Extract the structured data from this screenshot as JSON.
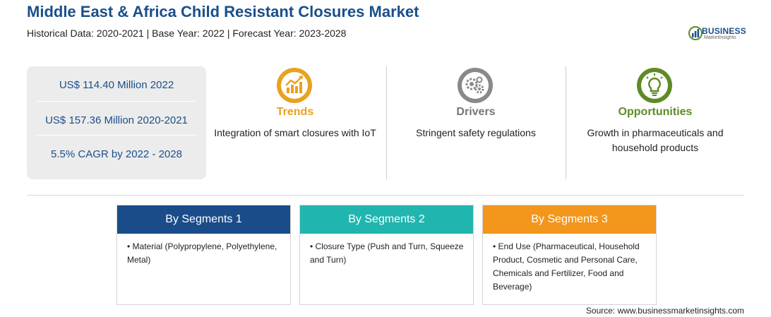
{
  "header": {
    "title": "Middle East & Africa Child Resistant Closures Market",
    "subtitle": "Historical Data: 2020-2021 | Base Year: 2022 | Forecast Year: 2023-2028"
  },
  "logo": {
    "word": "BUSINESS",
    "sub": "MarketInsights",
    "icon": "bar-chart-globe-icon"
  },
  "stats": [
    {
      "text": "US$ 114.40 Million 2022"
    },
    {
      "text": "US$ 157.36 Million 2020-2021"
    },
    {
      "text": "5.5% CAGR by 2022 - 2028"
    }
  ],
  "features": [
    {
      "label": "Trends",
      "desc": "Integration of smart closures with IoT",
      "icon": "trend-chart-icon",
      "color": "#e8a21f"
    },
    {
      "label": "Drivers",
      "desc": "Stringent safety regulations",
      "icon": "gears-icon",
      "color": "#777777"
    },
    {
      "label": "Opportunities",
      "desc": "Growth in pharmaceuticals and household products",
      "icon": "lightbulb-icon",
      "color": "#5e8b25"
    }
  ],
  "segments": [
    {
      "title": "By Segments 1",
      "item": "Material (Polypropylene, Polyethylene, Metal)",
      "color": "#1b4c8a"
    },
    {
      "title": "By Segments 2",
      "item": "Closure Type (Push and Turn, Squeeze and Turn)",
      "color": "#21b5b0"
    },
    {
      "title": "By Segments 3",
      "item": "End Use (Pharmaceutical, Household Product, Cosmetic and Personal Care, Chemicals and Fertilizer, Food and Beverage)",
      "color": "#f2961c"
    }
  ],
  "footer": {
    "source": "Source: www.businessmarketinsights.com"
  }
}
